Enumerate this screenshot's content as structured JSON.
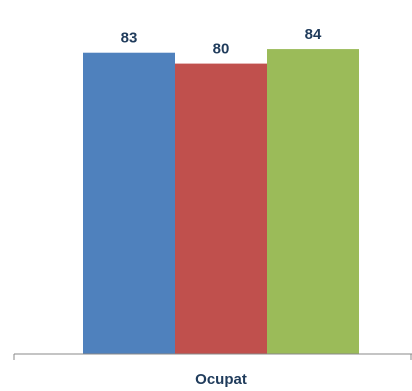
{
  "chart_data": {
    "type": "bar",
    "categories": [
      "Ocupat"
    ],
    "series": [
      {
        "values": [
          83
        ],
        "color": "#4f81bd"
      },
      {
        "values": [
          80
        ],
        "color": "#c0504d"
      },
      {
        "values": [
          84
        ],
        "color": "#9bbb59"
      }
    ],
    "title": "",
    "xlabel": "",
    "ylabel": "",
    "ylim": [
      0,
      100
    ],
    "grid": false,
    "show_data_labels": true,
    "legend": "none",
    "axis_color": "#888888"
  }
}
